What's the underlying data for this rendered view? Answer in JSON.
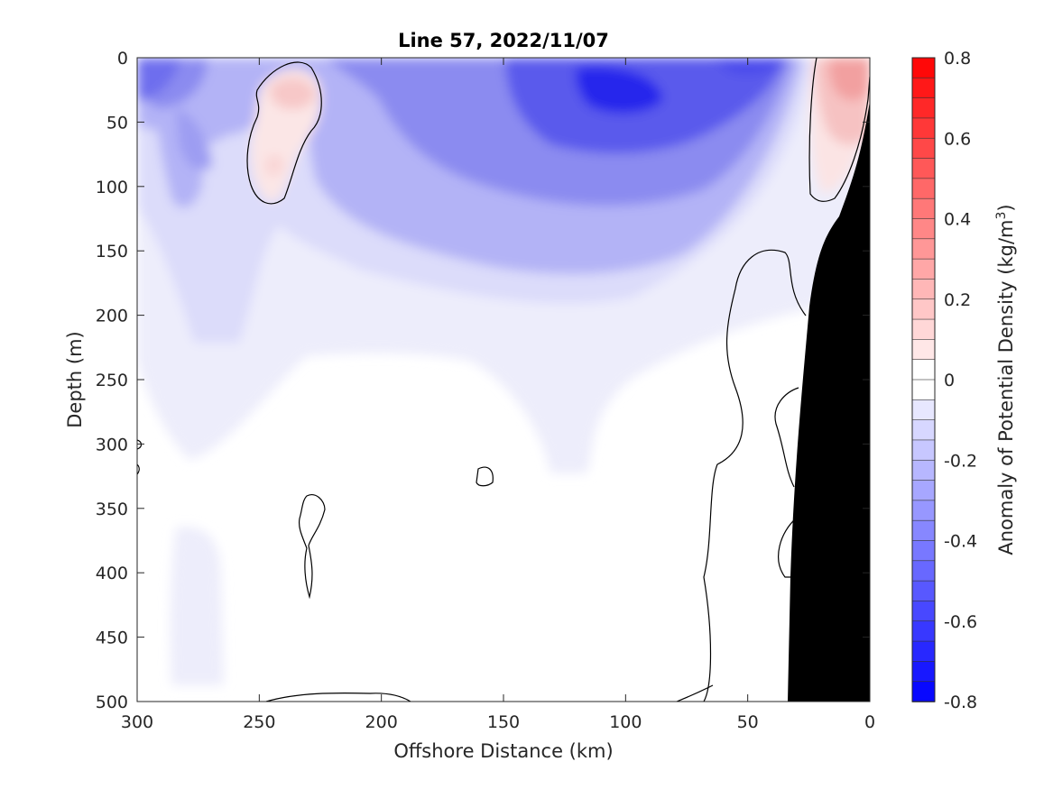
{
  "chart_data": {
    "type": "heatmap",
    "title": "Line 57, 2022/11/07",
    "xlabel": "Offshore Distance (km)",
    "ylabel": "Depth (m)",
    "colorbar_label": "Anomaly of Potential Density (kg/m³)",
    "colorbar_label_main": "Anomaly of Potential Density (kg/m",
    "colorbar_label_sup": "3",
    "colorbar_label_tail": ")",
    "x_ticks": [
      300,
      250,
      200,
      150,
      100,
      50,
      0
    ],
    "y_ticks": [
      0,
      50,
      100,
      150,
      200,
      250,
      300,
      350,
      400,
      450,
      500
    ],
    "colorbar_ticks": [
      0.8,
      0.6,
      0.4,
      0.2,
      0,
      -0.2,
      -0.4,
      -0.6,
      -0.8
    ],
    "colorbar_tick_labels": [
      "0.8",
      "0.6",
      "0.4",
      "0.2",
      "0",
      "-0.2",
      "-0.4",
      "-0.6",
      "-0.8"
    ],
    "xlim": [
      300,
      0
    ],
    "ylim": [
      500,
      0
    ],
    "clim": [
      -0.8,
      0.8
    ],
    "contour_levels_step": 0.05,
    "colors": {
      "positive": "#ff0000",
      "negative": "#0000ff",
      "neutral": "#ffffff",
      "bathymetry": "#000000"
    },
    "grid": false,
    "colorbar_position": "right",
    "features": {
      "negative_anomalies": [
        {
          "x_km": 290,
          "depth_m": 20,
          "value": -0.45
        },
        {
          "x_km": 275,
          "depth_m": 60,
          "value": -0.3
        },
        {
          "x_km": 200,
          "depth_m": 30,
          "value": -0.3
        },
        {
          "x_km": 150,
          "depth_m": 45,
          "value": -0.45
        },
        {
          "x_km": 100,
          "depth_m": 35,
          "value": -0.75
        },
        {
          "x_km": 75,
          "depth_m": 90,
          "value": -0.45
        },
        {
          "x_km": 45,
          "depth_m": 5,
          "value": -0.6
        },
        {
          "x_km": 125,
          "depth_m": 180,
          "value": -0.2
        },
        {
          "x_km": 270,
          "depth_m": 210,
          "value": -0.08
        },
        {
          "x_km": 195,
          "depth_m": 240,
          "value": -0.06
        },
        {
          "x_km": 125,
          "depth_m": 270,
          "value": -0.06
        },
        {
          "x_km": 270,
          "depth_m": 440,
          "value": -0.06
        }
      ],
      "positive_anomalies": [
        {
          "x_km": 238,
          "depth_m": 25,
          "value": 0.15
        },
        {
          "x_km": 245,
          "depth_m": 85,
          "value": 0.1
        },
        {
          "x_km": 12,
          "depth_m": 15,
          "value": 0.3
        },
        {
          "x_km": 18,
          "depth_m": 60,
          "value": 0.12
        }
      ]
    }
  }
}
